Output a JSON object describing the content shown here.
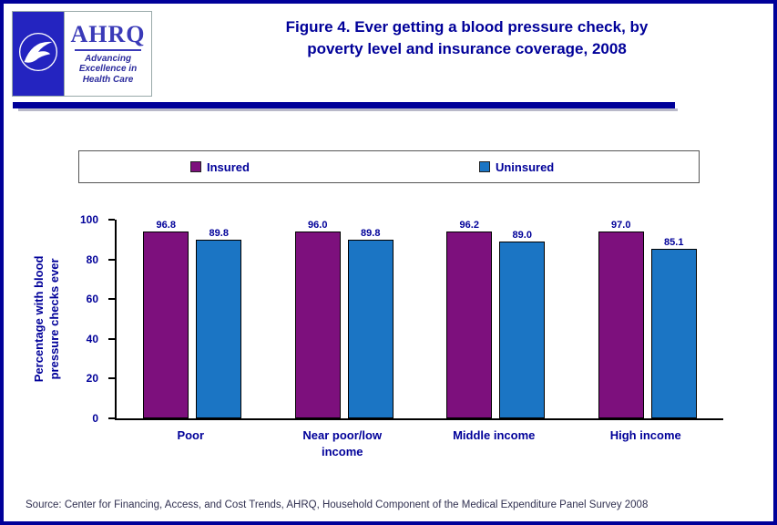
{
  "page": {
    "title_line1": "Figure 4. Ever getting a blood pressure check, by",
    "title_line2": "poverty level and insurance coverage, 2008",
    "source": "Source: Center for Financing, Access, and Cost Trends, AHRQ, Household Component of the Medical Expenditure Panel Survey 2008"
  },
  "logo": {
    "org": "AHRQ",
    "tagline_line1": "Advancing",
    "tagline_line2": "Excellence in",
    "tagline_line3": "Health Care"
  },
  "colors": {
    "accent_navy": "#000099",
    "insured": "#7D107D",
    "uninsured": "#1B75C4"
  },
  "chart_data": {
    "type": "bar",
    "title": "Figure 4. Ever getting a blood pressure check, by poverty level and insurance coverage, 2008",
    "categories": [
      "Poor",
      "Near poor/low income",
      "Middle income",
      "High income"
    ],
    "series": [
      {
        "name": "Insured",
        "color": "#7D107D",
        "values": [
          96.8,
          96.0,
          96.2,
          97.0
        ]
      },
      {
        "name": "Uninsured",
        "color": "#1B75C4",
        "values": [
          89.8,
          89.8,
          89.0,
          85.1
        ]
      }
    ],
    "ylabel": "Percentage with blood pressure checks ever",
    "xlabel": "",
    "ylim": [
      0,
      100
    ],
    "yticks": [
      0,
      20,
      40,
      60,
      80,
      100
    ],
    "value_label_decimals": 1,
    "legend_position": "top",
    "grid": false
  }
}
